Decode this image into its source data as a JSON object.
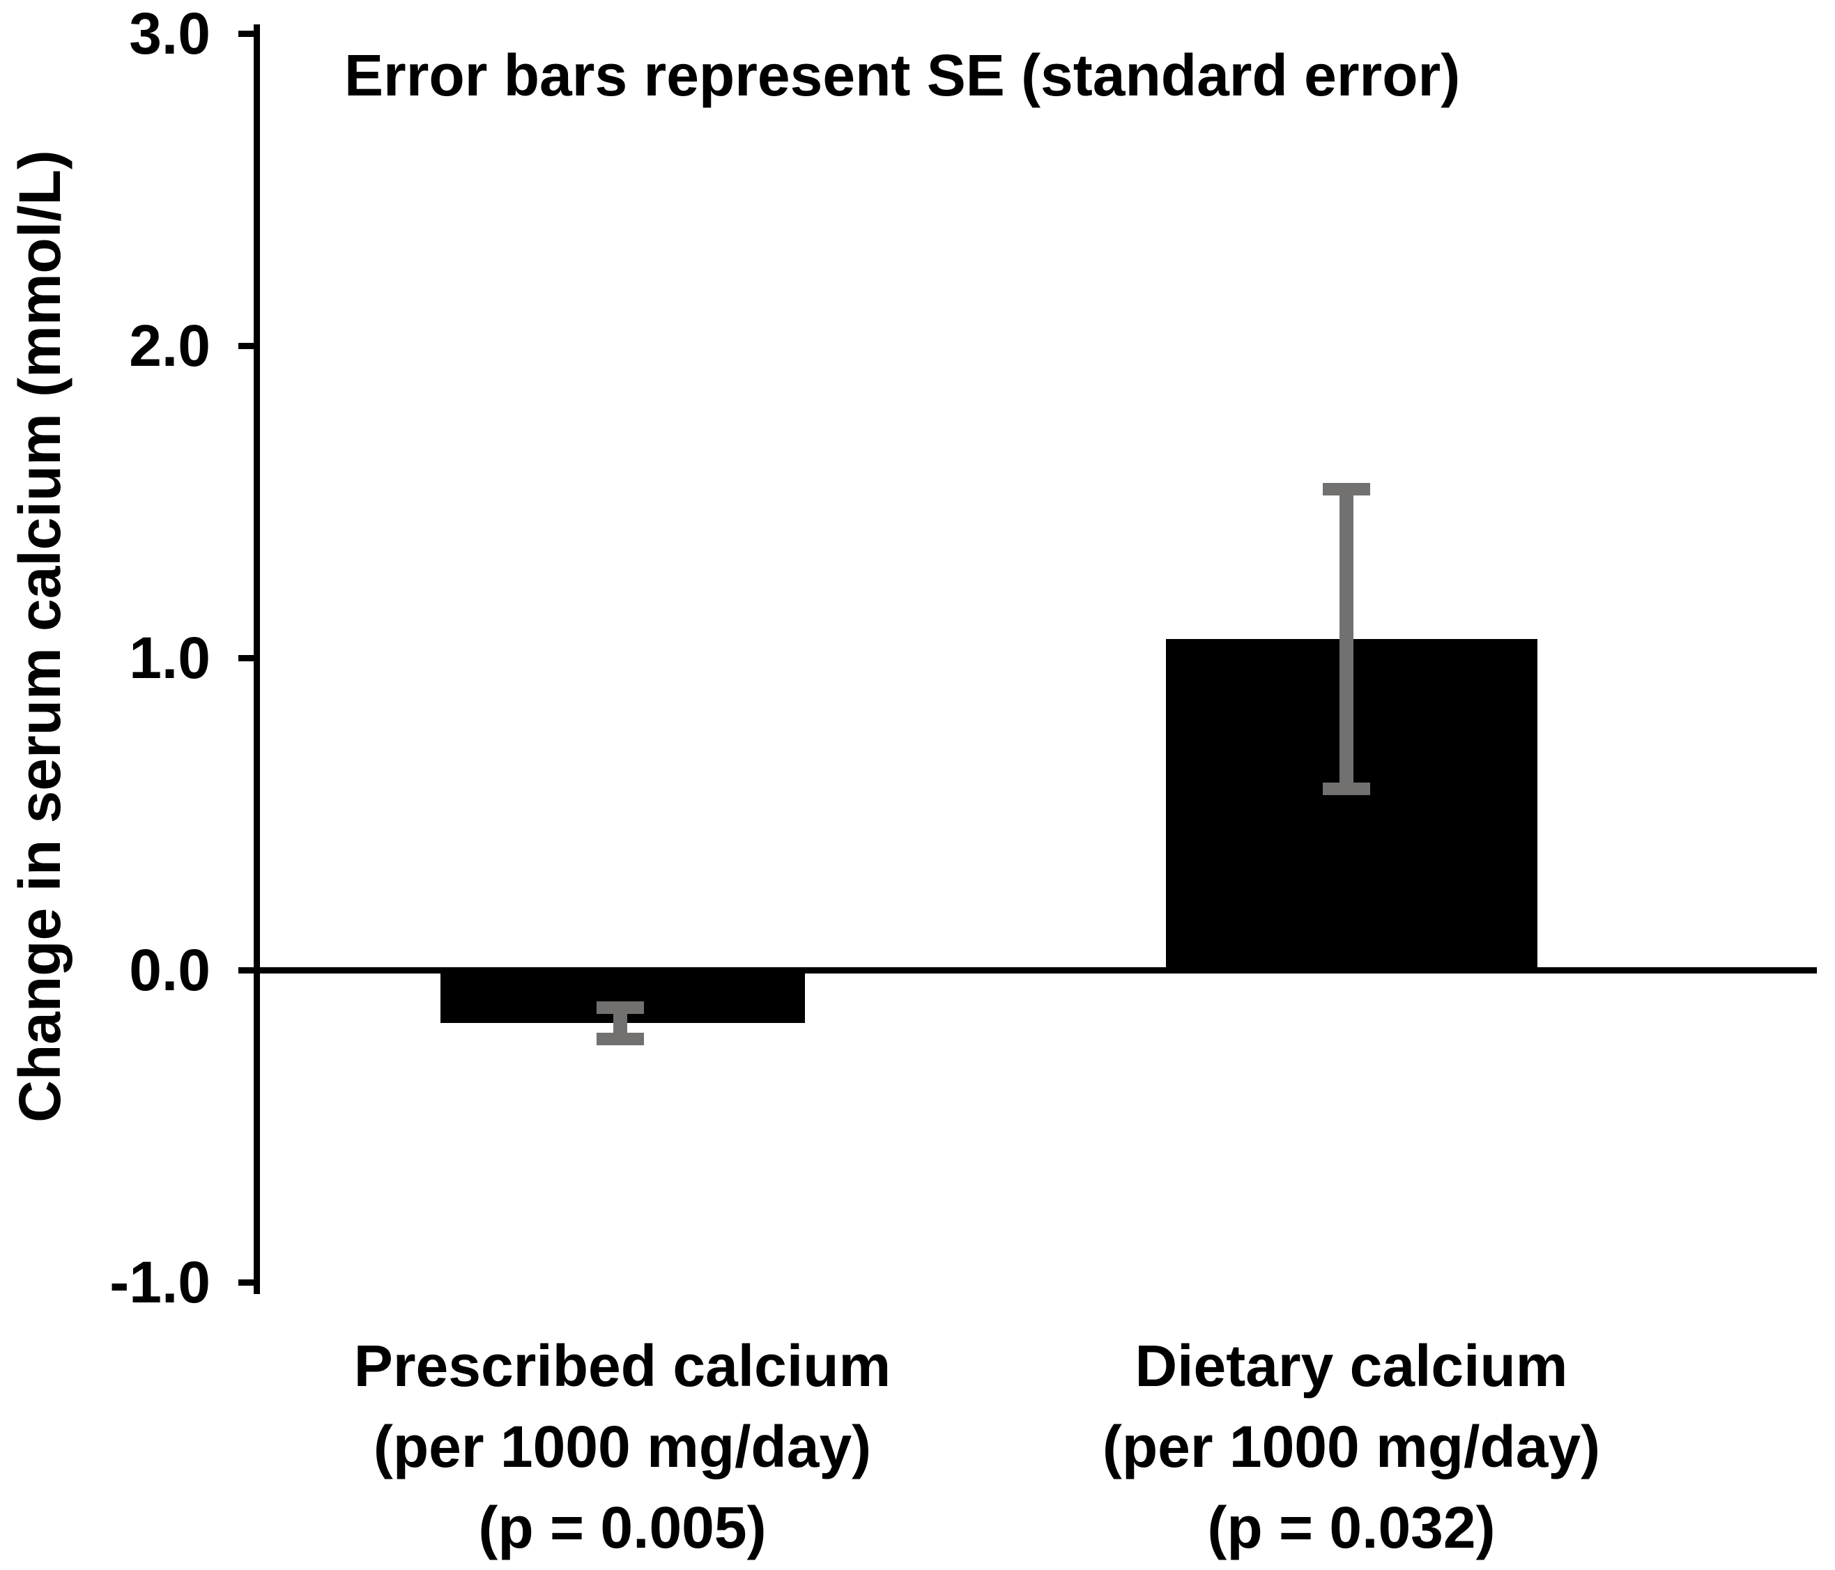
{
  "figure": {
    "background_color": "#ffffff",
    "text_color": "#000000"
  },
  "chart_data": {
    "type": "bar",
    "title": "",
    "annotation": "Error bars represent SE (standard error)",
    "ylabel": "Change in serum calcium (mmol/L)",
    "xlabel": "",
    "ylim": [
      -1.0,
      3.0
    ],
    "ytick_labels": [
      "3.0",
      "2.0",
      "1.0",
      "0.0",
      "-1.0"
    ],
    "grid": false,
    "legend": false,
    "error_bars": "SE",
    "bar_color": "#000000",
    "error_bar_color": "#737070",
    "axis_color": "#000000",
    "categories": [
      {
        "name": "Prescribed calcium",
        "lines": [
          "Prescribed calcium",
          "(per 1000 mg/day)",
          "(p = 0.005)"
        ]
      },
      {
        "name": "Dietary calcium",
        "lines": [
          "Dietary calcium",
          "(per 1000 mg/day)",
          "(p = 0.032)"
        ]
      }
    ],
    "values": [
      -0.17,
      1.06
    ],
    "errors_se": [
      0.05,
      0.48
    ]
  }
}
